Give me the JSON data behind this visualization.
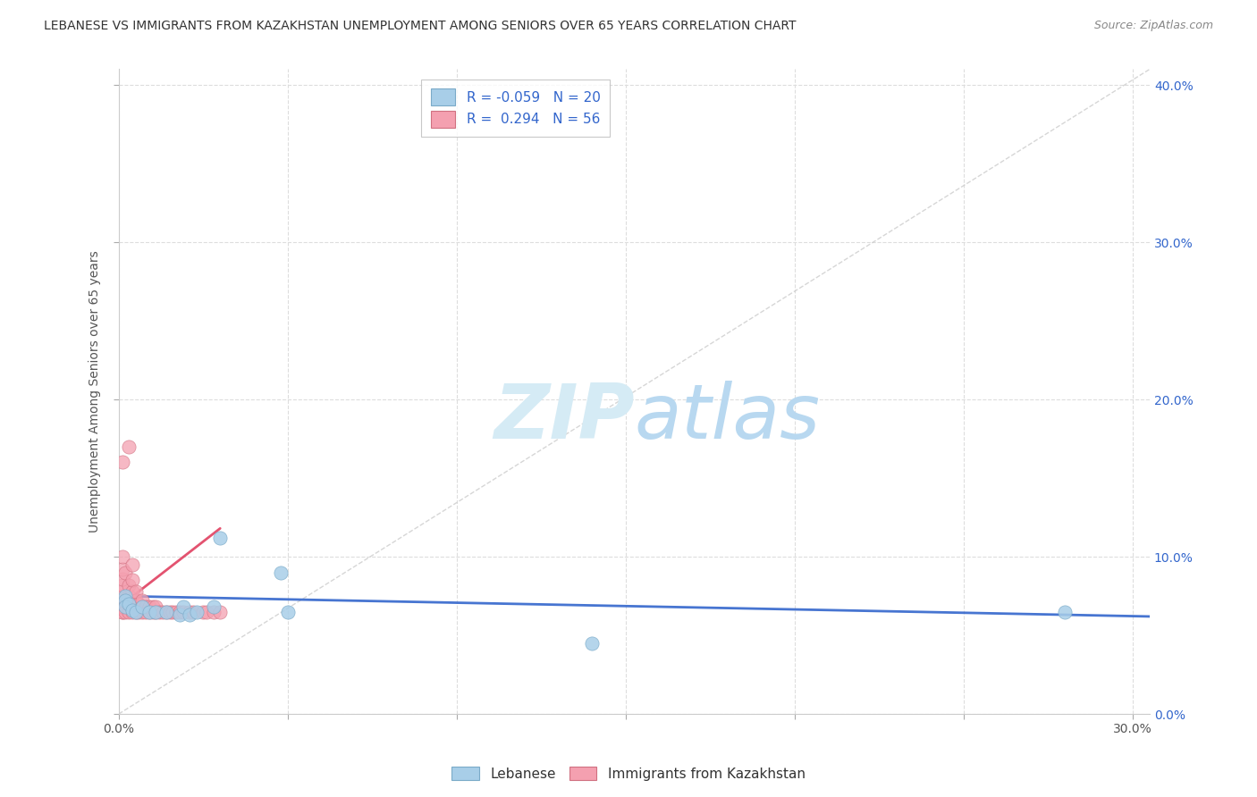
{
  "title": "LEBANESE VS IMMIGRANTS FROM KAZAKHSTAN UNEMPLOYMENT AMONG SENIORS OVER 65 YEARS CORRELATION CHART",
  "source": "Source: ZipAtlas.com",
  "ylabel": "Unemployment Among Seniors over 65 years",
  "xlim": [
    0.0,
    0.305
  ],
  "ylim": [
    0.0,
    0.41
  ],
  "xticks": [
    0.0,
    0.05,
    0.1,
    0.15,
    0.2,
    0.25,
    0.3
  ],
  "yticks": [
    0.0,
    0.1,
    0.2,
    0.3,
    0.4
  ],
  "color_blue": "#A8CEE8",
  "color_pink": "#F4A0B0",
  "edge_blue": "#7AAAC8",
  "edge_pink": "#D07080",
  "line_blue": "#3366CC",
  "line_pink": "#E04060",
  "dash_color": "#CCCCCC",
  "grid_color": "#DDDDDD",
  "background_color": "#FFFFFF",
  "legend_r1": "-0.059",
  "legend_n1": "20",
  "legend_r2": "0.294",
  "legend_n2": "56",
  "title_fontsize": 10,
  "tick_fontsize": 10,
  "legend_fontsize": 11,
  "leb_x": [
    0.002,
    0.002,
    0.002,
    0.003,
    0.004,
    0.005,
    0.007,
    0.009,
    0.011,
    0.014,
    0.018,
    0.019,
    0.021,
    0.023,
    0.028,
    0.03,
    0.048,
    0.05,
    0.14,
    0.28
  ],
  "leb_y": [
    0.075,
    0.072,
    0.068,
    0.07,
    0.066,
    0.065,
    0.068,
    0.065,
    0.065,
    0.065,
    0.063,
    0.068,
    0.063,
    0.065,
    0.068,
    0.112,
    0.09,
    0.065,
    0.045,
    0.065
  ],
  "kaz_x": [
    0.001,
    0.001,
    0.001,
    0.001,
    0.001,
    0.001,
    0.001,
    0.001,
    0.001,
    0.001,
    0.001,
    0.001,
    0.002,
    0.002,
    0.002,
    0.003,
    0.003,
    0.003,
    0.003,
    0.003,
    0.004,
    0.004,
    0.004,
    0.004,
    0.004,
    0.005,
    0.005,
    0.005,
    0.005,
    0.006,
    0.006,
    0.007,
    0.007,
    0.007,
    0.008,
    0.008,
    0.009,
    0.009,
    0.01,
    0.01,
    0.011,
    0.011,
    0.012,
    0.013,
    0.014,
    0.015,
    0.016,
    0.017,
    0.018,
    0.019,
    0.021,
    0.022,
    0.025,
    0.026,
    0.028,
    0.03
  ],
  "kaz_y": [
    0.065,
    0.065,
    0.068,
    0.07,
    0.072,
    0.075,
    0.078,
    0.082,
    0.086,
    0.092,
    0.1,
    0.16,
    0.065,
    0.072,
    0.09,
    0.065,
    0.07,
    0.075,
    0.082,
    0.17,
    0.065,
    0.07,
    0.078,
    0.085,
    0.095,
    0.065,
    0.068,
    0.072,
    0.078,
    0.065,
    0.07,
    0.065,
    0.068,
    0.072,
    0.065,
    0.068,
    0.065,
    0.068,
    0.065,
    0.068,
    0.065,
    0.068,
    0.065,
    0.065,
    0.065,
    0.065,
    0.065,
    0.065,
    0.065,
    0.065,
    0.065,
    0.065,
    0.065,
    0.065,
    0.065,
    0.065
  ],
  "leb_line_x": [
    0.0,
    0.305
  ],
  "leb_line_y": [
    0.075,
    0.062
  ],
  "kaz_line_x": [
    0.0,
    0.03
  ],
  "kaz_line_y": [
    0.068,
    0.118
  ],
  "diag_line_x": [
    0.0,
    0.305
  ],
  "diag_line_y": [
    0.0,
    0.41
  ]
}
